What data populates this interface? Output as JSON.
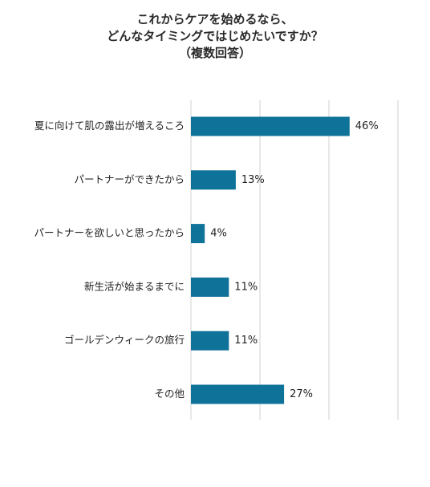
{
  "chart_data": {
    "type": "bar",
    "orientation": "horizontal",
    "title_lines": [
      "これからケアを始めるなら、",
      "どんなタイミングではじめたいですか？",
      "（複数回答）"
    ],
    "categories": [
      "夏に向けて肌の露出が増えるころ",
      "パートナーができたから",
      "パートナーを欲しいと思ったから",
      "新生活が始まるまでに",
      "ゴールデンウィークの旅行",
      "その他"
    ],
    "values": [
      46,
      13,
      4,
      11,
      11,
      27
    ],
    "value_labels": [
      "46%",
      "13%",
      "4%",
      "11%",
      "11%",
      "27%"
    ],
    "unit": "%",
    "xlim": [
      0,
      60
    ],
    "grid": true,
    "bar_color": "#0f7299",
    "grid_color": "#d0d0d0"
  }
}
